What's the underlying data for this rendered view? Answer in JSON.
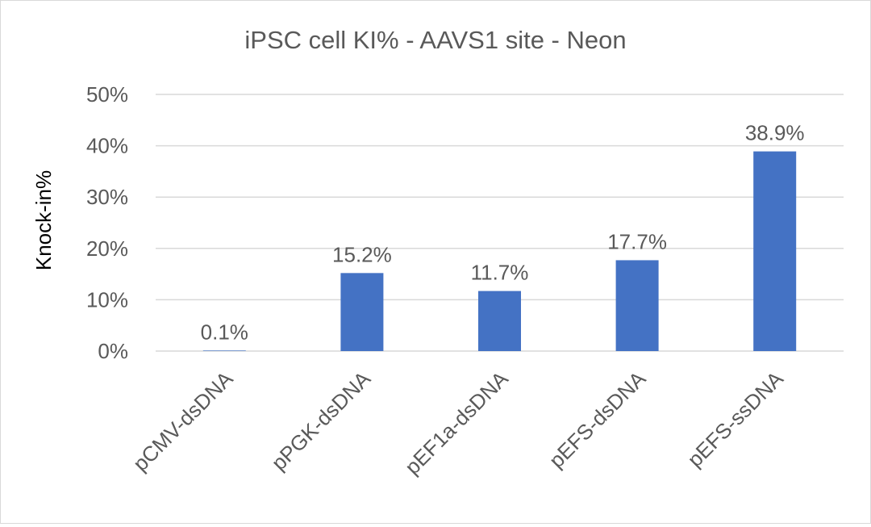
{
  "chart_data": {
    "type": "bar",
    "title": "iPSC cell KI% - AAVS1 site - Neon",
    "xlabel": "",
    "ylabel": "Knock-in%",
    "categories": [
      "pCMV-dsDNA",
      "pPGK-dsDNA",
      "pEF1a-dsDNA",
      "pEFS-dsDNA",
      "pEFS-ssDNA"
    ],
    "values": [
      0.1,
      15.2,
      11.7,
      17.7,
      38.9
    ],
    "data_labels": [
      "0.1%",
      "15.2%",
      "11.7%",
      "17.7%",
      "38.9%"
    ],
    "ylim": [
      0,
      50
    ],
    "yticks": [
      0,
      10,
      20,
      30,
      40,
      50
    ],
    "ytick_labels": [
      "0%",
      "10%",
      "20%",
      "30%",
      "40%",
      "50%"
    ],
    "grid": true,
    "legend": "none",
    "colors": {
      "bar": "#4472c4",
      "grid": "#d9d9d9",
      "text": "#595959",
      "axis_title": "#000000"
    }
  }
}
